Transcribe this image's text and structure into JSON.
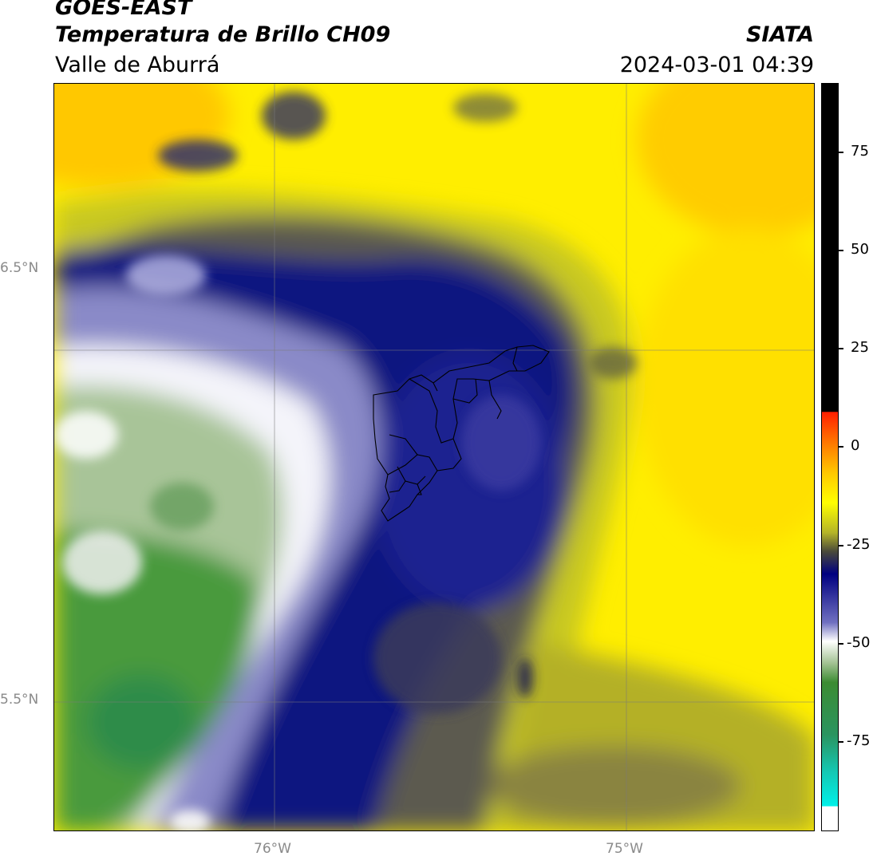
{
  "header": {
    "satellite": "GOES-EAST",
    "product": "Temperatura de Brillo CH09",
    "region": "Valle de Aburrá",
    "organization": "SIATA",
    "timestamp": "2024-03-01 04:39"
  },
  "map": {
    "lat_labels": [
      "6.5°N",
      "5.5°N"
    ],
    "lon_labels": [
      "76°W",
      "75°W"
    ]
  },
  "colorbar": {
    "ticks": [
      "75",
      "50",
      "25",
      "0",
      "-25",
      "-50",
      "-75"
    ],
    "colors": {
      "black": "#000000",
      "red": "#ff2000",
      "orange": "#ff9000",
      "yellow": "#ffff00",
      "olive": "#4a4a3a",
      "navy": "#000080",
      "white": "#ffffff",
      "green": "#3c8c32",
      "cyan": "#00e8e0"
    }
  }
}
